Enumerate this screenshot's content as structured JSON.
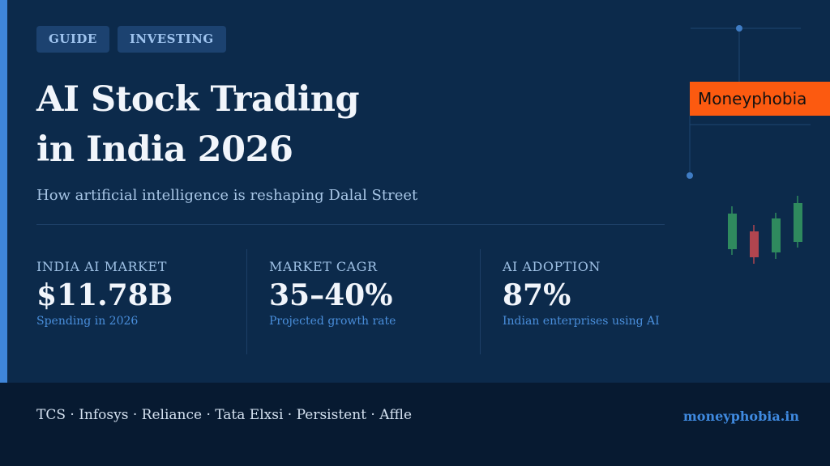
{
  "tags": [
    "GUIDE",
    "INVESTING"
  ],
  "title_lines": [
    "AI Stock Trading",
    "in India 2026"
  ],
  "subtitle": "How artificial intelligence is reshaping Dalal Street",
  "brand_label": "Moneyphobia",
  "stats": [
    {
      "label": "INDIA AI MARKET",
      "value": "$11.78B",
      "sub": "Spending in 2026"
    },
    {
      "label": "MARKET CAGR",
      "value": "35–40%",
      "sub": "Projected growth rate"
    },
    {
      "label": "AI ADOPTION",
      "value": "87%",
      "sub": "Indian enterprises using AI"
    }
  ],
  "footer": {
    "tickers": "TCS · Infosys · Reliance · Tata Elxsi · Persistent · Affle",
    "site": "moneyphobia.in"
  },
  "colors": {
    "background": "#0c2a4b",
    "accent": "#3f86da",
    "brand": "#fc5a10",
    "candle_up": "#2f8a5e",
    "candle_down": "#b0454f"
  },
  "icons": [
    "circuit-line-decoration",
    "candlestick-decoration"
  ]
}
